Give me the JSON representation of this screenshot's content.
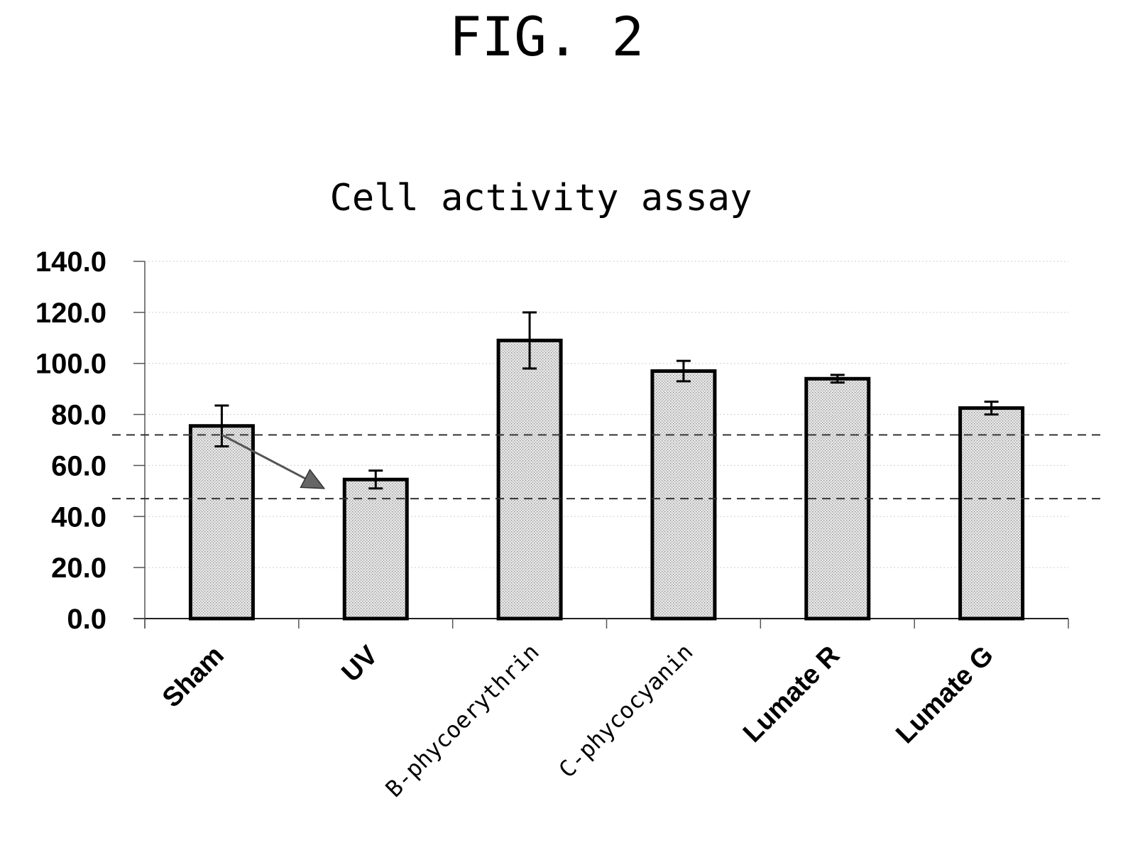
{
  "figure_label": "FIG. 2",
  "chart_data": {
    "type": "bar",
    "title": "Cell activity assay",
    "xlabel": "",
    "ylabel": "",
    "categories": [
      "Sham",
      "UV",
      "B-phycoerythrin",
      "C-phycocyanin",
      "Lumate R",
      "Lumate G"
    ],
    "values": [
      75.5,
      54.5,
      109.0,
      97.0,
      94.0,
      82.5
    ],
    "error": [
      8.0,
      3.5,
      11.0,
      4.0,
      1.5,
      2.5
    ],
    "yticks": [
      "0.0",
      "20.0",
      "40.0",
      "60.0",
      "80.0",
      "100.0",
      "120.0",
      "140.0"
    ],
    "ylim": [
      0,
      140
    ],
    "grid": false,
    "legend": "none",
    "reference_lines": [
      72.0,
      47.0
    ],
    "annotation": {
      "type": "arrow",
      "from": {
        "category": "Sham",
        "y": 72
      },
      "to": {
        "category": "UV",
        "y": 51
      }
    },
    "bar_fill": "#d9d9d9",
    "bar_edge": "#000000"
  }
}
